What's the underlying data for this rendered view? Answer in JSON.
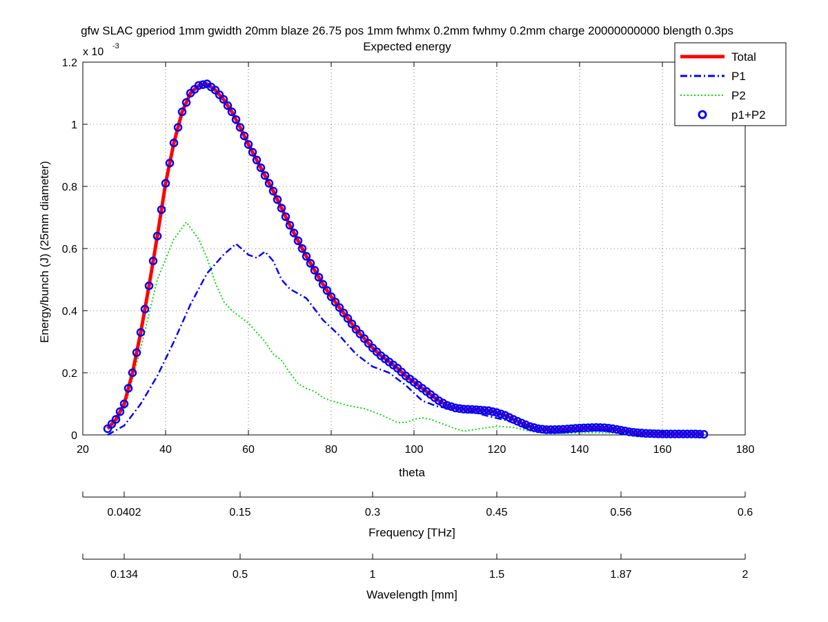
{
  "chart_data": {
    "type": "line",
    "title_line1": "gfw SLAC gperiod 1mm gwidth 20mm blaze 26.75 pos 1mm fwhmx 0.2mm fwhmy 0.2mm charge 20000000000 blength 0.3ps",
    "title_line2": "Expected energy",
    "xlabel": "theta",
    "ylabel": "Energy/bunch (J) (25mm diameter)",
    "y_exponent_base": "x 10",
    "y_exponent_power": "-3",
    "xlim": [
      20,
      180
    ],
    "ylim": [
      0,
      1.2
    ],
    "x_ticks": [
      "20",
      "40",
      "60",
      "80",
      "100",
      "120",
      "140",
      "160",
      "180"
    ],
    "y_ticks": [
      "0",
      "0.2",
      "0.4",
      "0.6",
      "0.8",
      "1",
      "1.2"
    ],
    "grid": true,
    "legend_position": "top-right",
    "legend": [
      {
        "label": "Total",
        "color": "#ff0000",
        "style": "solid"
      },
      {
        "label": "P1",
        "color": "#0000ff",
        "style": "dashdot"
      },
      {
        "label": "P2",
        "color": "#00dd00",
        "style": "dotted"
      },
      {
        "label": "p1+P2",
        "color": "#0000ff",
        "style": "circle-markers"
      }
    ],
    "secondary_axes": [
      {
        "label": "Frequency [THz]",
        "ticks": [
          {
            "at": 30,
            "text": "0.0402"
          },
          {
            "at": 58,
            "text": "0.15"
          },
          {
            "at": 90,
            "text": "0.3"
          },
          {
            "at": 120,
            "text": "0.45"
          },
          {
            "at": 150,
            "text": "0.56"
          },
          {
            "at": 180,
            "text": "0.6"
          }
        ]
      },
      {
        "label": "Wavelength [mm]",
        "ticks": [
          {
            "at": 30,
            "text": "0.134"
          },
          {
            "at": 58,
            "text": "0.5"
          },
          {
            "at": 90,
            "text": "1"
          },
          {
            "at": 120,
            "text": "1.5"
          },
          {
            "at": 150,
            "text": "1.87"
          },
          {
            "at": 180,
            "text": "2"
          }
        ]
      }
    ],
    "series": [
      {
        "name": "Total",
        "x": [
          26,
          28,
          30,
          32,
          34,
          36,
          38,
          40,
          42,
          44,
          46,
          48,
          50,
          52,
          54,
          56,
          58,
          60,
          62,
          64,
          66,
          68,
          70,
          72,
          74,
          76,
          78,
          80,
          82,
          84,
          86,
          88,
          90,
          92,
          94,
          96,
          98,
          100,
          102,
          104,
          106,
          108,
          110,
          112,
          114,
          116,
          118,
          120,
          122,
          124,
          126,
          128,
          130,
          132,
          134,
          136,
          138,
          140,
          142,
          144,
          146,
          148,
          150,
          152,
          154,
          156,
          158,
          160,
          162,
          164,
          166,
          168,
          170
        ],
        "y": [
          0.02,
          0.05,
          0.1,
          0.2,
          0.33,
          0.48,
          0.64,
          0.81,
          0.94,
          1.04,
          1.1,
          1.125,
          1.13,
          1.11,
          1.08,
          1.04,
          0.99,
          0.935,
          0.885,
          0.835,
          0.785,
          0.73,
          0.675,
          0.625,
          0.575,
          0.53,
          0.485,
          0.445,
          0.41,
          0.375,
          0.34,
          0.31,
          0.28,
          0.255,
          0.235,
          0.215,
          0.19,
          0.17,
          0.15,
          0.13,
          0.11,
          0.095,
          0.087,
          0.083,
          0.082,
          0.08,
          0.078,
          0.072,
          0.063,
          0.05,
          0.038,
          0.027,
          0.02,
          0.017,
          0.017,
          0.018,
          0.02,
          0.022,
          0.023,
          0.024,
          0.023,
          0.02,
          0.015,
          0.01,
          0.007,
          0.005,
          0.004,
          0.003,
          0.003,
          0.003,
          0.003,
          0.003,
          0.002
        ]
      },
      {
        "name": "P1",
        "x": [
          26,
          30,
          34,
          38,
          42,
          46,
          50,
          54,
          57,
          60,
          62,
          64,
          66,
          68,
          70,
          74,
          78,
          82,
          86,
          90,
          94,
          98,
          102,
          106,
          110,
          114,
          118,
          122,
          126,
          130,
          134,
          138,
          142,
          146,
          150,
          154,
          158,
          162,
          166,
          170
        ],
        "y": [
          0.0,
          0.03,
          0.1,
          0.19,
          0.3,
          0.42,
          0.52,
          0.58,
          0.615,
          0.58,
          0.57,
          0.59,
          0.56,
          0.5,
          0.47,
          0.44,
          0.37,
          0.32,
          0.26,
          0.22,
          0.2,
          0.16,
          0.11,
          0.09,
          0.085,
          0.075,
          0.06,
          0.048,
          0.03,
          0.015,
          0.01,
          0.012,
          0.014,
          0.015,
          0.01,
          0.005,
          0.003,
          0.002,
          0.002,
          0.001
        ]
      },
      {
        "name": "P2",
        "x": [
          26,
          30,
          34,
          38,
          42,
          45,
          48,
          50,
          52,
          54,
          56,
          58,
          60,
          62,
          64,
          66,
          68,
          70,
          72,
          74,
          76,
          78,
          80,
          84,
          88,
          92,
          96,
          98,
          100,
          102,
          104,
          106,
          108,
          110,
          112,
          116,
          120,
          124,
          128,
          132,
          136,
          140,
          144,
          148,
          152,
          156,
          160,
          164,
          168,
          170
        ],
        "y": [
          0.0,
          0.08,
          0.28,
          0.5,
          0.63,
          0.685,
          0.63,
          0.57,
          0.49,
          0.43,
          0.4,
          0.38,
          0.36,
          0.33,
          0.3,
          0.26,
          0.24,
          0.2,
          0.165,
          0.15,
          0.14,
          0.12,
          0.11,
          0.095,
          0.085,
          0.065,
          0.04,
          0.04,
          0.05,
          0.055,
          0.05,
          0.04,
          0.03,
          0.02,
          0.012,
          0.02,
          0.028,
          0.024,
          0.012,
          0.005,
          0.005,
          0.006,
          0.007,
          0.006,
          0.004,
          0.003,
          0.002,
          0.002,
          0.001,
          0.001
        ]
      }
    ],
    "colors": {
      "total": "#ff0000",
      "p1": "#0000ff",
      "p2": "#00dd00",
      "markers": "#0000ff",
      "grid": "#000000"
    }
  }
}
